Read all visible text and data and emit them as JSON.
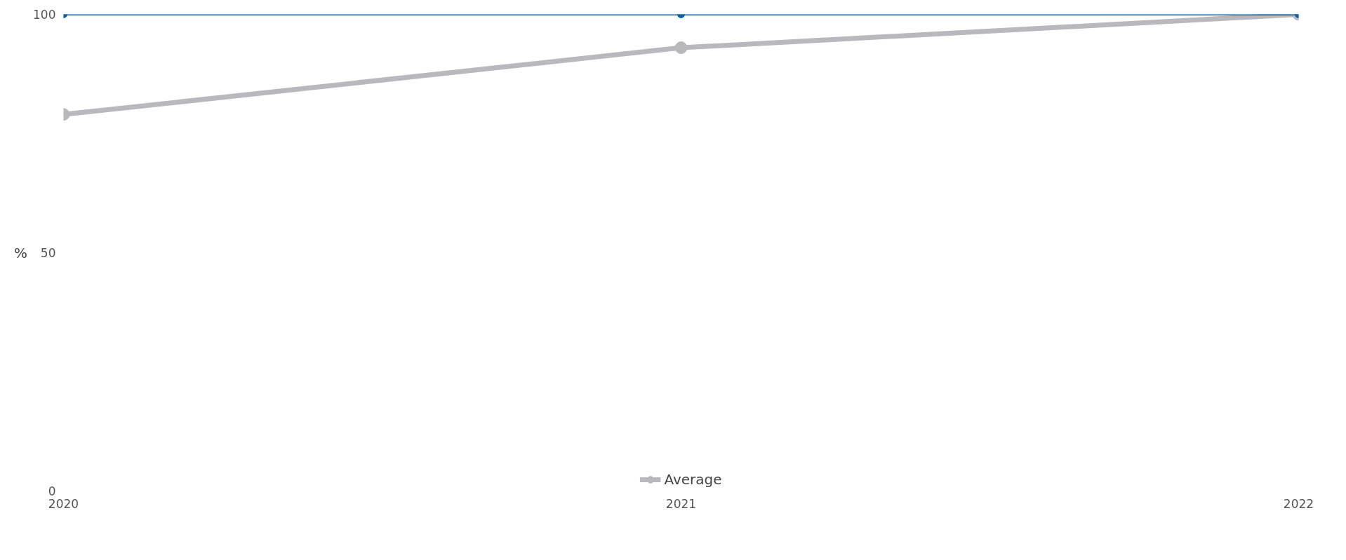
{
  "chart_data": {
    "type": "line",
    "x": [
      2020,
      2021,
      2022
    ],
    "xlim": [
      2020,
      2022
    ],
    "xticks": [
      2020,
      2021,
      2022
    ],
    "ylim": [
      0,
      100
    ],
    "yticks": [
      0,
      50,
      100
    ],
    "ylabel": "%",
    "grid": false,
    "legend": "bottom",
    "marker": "circle",
    "line_style": "solid",
    "series": [
      {
        "color": "#0b5fa5",
        "values": [
          100,
          100,
          100
        ]
      },
      {
        "name": "Average",
        "color": "#b8b8bd",
        "values": [
          79,
          93,
          100
        ]
      }
    ]
  }
}
